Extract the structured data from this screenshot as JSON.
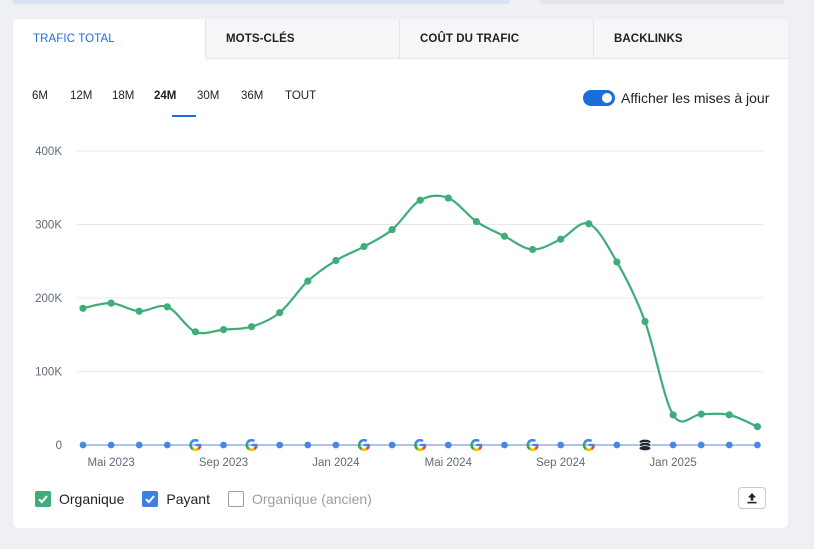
{
  "tabs": [
    {
      "label": "TRAFIC TOTAL",
      "active": true
    },
    {
      "label": "MOTS-CLÉS",
      "active": false
    },
    {
      "label": "COÛT DU TRAFIC",
      "active": false
    },
    {
      "label": "BACKLINKS",
      "active": false
    }
  ],
  "periods": [
    "6M",
    "12M",
    "18M",
    "24M",
    "30M",
    "36M",
    "TOUT"
  ],
  "active_period": "24M",
  "toggle": {
    "label": "Afficher les mises à jour",
    "on": true
  },
  "legend": {
    "organic": {
      "label": "Organique",
      "checked": true,
      "color": "#3dae79"
    },
    "paid": {
      "label": "Payant",
      "checked": true,
      "color": "#3d7fe6"
    },
    "organic_old": {
      "label": "Organique (ancien)",
      "checked": false
    }
  },
  "colors": {
    "accent": "#1a6ed8",
    "organic": "#3dae79",
    "paid": "#4a86e8",
    "grid": "#e6e8eb",
    "axis_text": "#5f6b7a"
  },
  "chart_data": {
    "type": "line",
    "title": "",
    "xlabel": "",
    "ylabel": "",
    "ylim": [
      0,
      400000
    ],
    "ytick_labels": [
      "0",
      "100K",
      "200K",
      "300K",
      "400K"
    ],
    "xtick_labels": [
      "Mai 2023",
      "Sep 2023",
      "Jan 2024",
      "Mai 2024",
      "Sep 2024",
      "Jan 2025"
    ],
    "xtick_index": [
      1,
      5,
      9,
      13,
      17,
      21
    ],
    "series": [
      {
        "name": "Organique",
        "values": [
          186000,
          193000,
          182000,
          188000,
          154000,
          157000,
          161000,
          180000,
          223000,
          251000,
          270000,
          293000,
          333000,
          336000,
          304000,
          284000,
          266000,
          280000,
          301000,
          249000,
          168000,
          41000,
          42000,
          41000,
          25000
        ]
      },
      {
        "name": "Payant",
        "values": [
          0,
          0,
          0,
          0,
          0,
          0,
          0,
          0,
          0,
          0,
          0,
          0,
          0,
          0,
          0,
          0,
          0,
          0,
          0,
          0,
          0,
          0,
          0,
          0,
          0
        ]
      }
    ],
    "update_markers": [
      {
        "index": 4,
        "type": "google"
      },
      {
        "index": 6,
        "type": "google"
      },
      {
        "index": 10,
        "type": "google"
      },
      {
        "index": 12,
        "type": "google"
      },
      {
        "index": 14,
        "type": "google"
      },
      {
        "index": 16,
        "type": "google"
      },
      {
        "index": 18,
        "type": "google"
      },
      {
        "index": 20,
        "type": "semrush"
      }
    ]
  }
}
